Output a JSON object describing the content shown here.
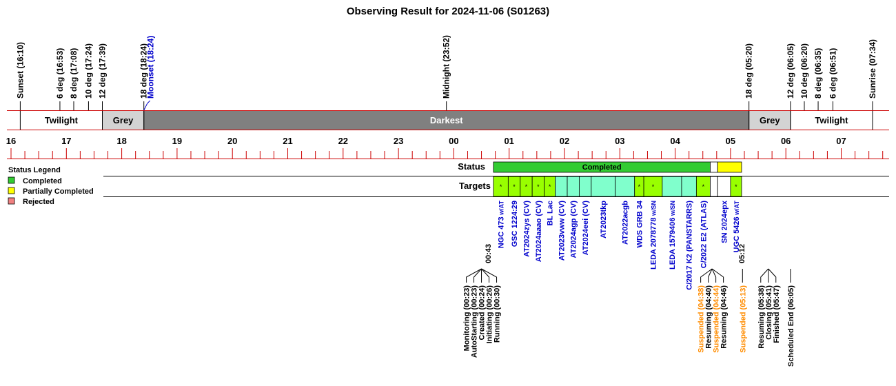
{
  "title": "Observing Result for 2024-11-06 (S01263)",
  "colors": {
    "twilight": "#ffffff",
    "grey": "#d3d3d3",
    "darkest": "#808080",
    "axis_red": "#cc0000",
    "completed": "#33cc33",
    "partial": "#ffff00",
    "rejected": "#f08080",
    "target_lime": "#99ff00",
    "target_aqua": "#80ffcc",
    "target_label": "#0000cc",
    "moon_label": "#0000cc",
    "suspended_label": "#ff8c00"
  },
  "sun_events": [
    {
      "label": "Sunset (16:10)",
      "time": "16:10"
    },
    {
      "label": "6 deg (16:53)",
      "time": "16:53"
    },
    {
      "label": "8 deg (17:08)",
      "time": "17:08"
    },
    {
      "label": "10 deg (17:24)",
      "time": "17:24"
    },
    {
      "label": "12 deg (17:39)",
      "time": "17:39"
    },
    {
      "label": "18 deg (18:24)",
      "time": "18:24"
    },
    {
      "label": "Midnight (23:52)",
      "time": "23:52"
    },
    {
      "label": "18 deg (05:20)",
      "time": "05:20"
    },
    {
      "label": "12 deg (06:05)",
      "time": "06:05"
    },
    {
      "label": "10 deg (06:20)",
      "time": "06:20"
    },
    {
      "label": "8 deg (06:35)",
      "time": "06:35"
    },
    {
      "label": "6 deg (06:51)",
      "time": "06:51"
    },
    {
      "label": "Sunrise (07:34)",
      "time": "07:34"
    }
  ],
  "moon_event": {
    "label": "Moonset (18:24)",
    "time": "18:24"
  },
  "sky_bands": [
    {
      "label": "Twilight",
      "start": "16:10",
      "end": "17:39",
      "kind": "twilight"
    },
    {
      "label": "Grey",
      "start": "17:39",
      "end": "18:24",
      "kind": "grey"
    },
    {
      "label": "Darkest",
      "start": "18:24",
      "end": "05:20",
      "kind": "darkest"
    },
    {
      "label": "Grey",
      "start": "05:20",
      "end": "06:05",
      "kind": "grey"
    },
    {
      "label": "Twilight",
      "start": "06:05",
      "end": "07:34",
      "kind": "twilight"
    }
  ],
  "hour_labels": [
    "16",
    "17",
    "18",
    "19",
    "20",
    "21",
    "22",
    "23",
    "00",
    "01",
    "02",
    "03",
    "04",
    "05",
    "06",
    "07"
  ],
  "legend": {
    "title": "Status Legend",
    "items": [
      {
        "label": "Completed",
        "color": "#33cc33"
      },
      {
        "label": "Partially Completed",
        "color": "#ffff00"
      },
      {
        "label": "Rejected",
        "color": "#f08080"
      }
    ]
  },
  "row_labels": {
    "status": "Status",
    "targets": "Targets"
  },
  "status_bars": [
    {
      "label": "Completed",
      "start": "00:43",
      "end": "04:38",
      "color": "#33cc33"
    },
    {
      "label": "",
      "start": "04:38",
      "end": "04:46",
      "color": "#ffffff"
    },
    {
      "label": "",
      "start": "04:46",
      "end": "05:12",
      "color": "#ffff00"
    }
  ],
  "start_label": "00:43",
  "end_label": "05:12",
  "targets": [
    {
      "name": "NGC 473",
      "suffix": " w/AT",
      "start": "00:43",
      "end": "00:59",
      "fill": "#99ff00",
      "mark": "*"
    },
    {
      "name": "GSC 1224:29",
      "suffix": "",
      "start": "00:59",
      "end": "01:12",
      "fill": "#99ff00",
      "mark": "*"
    },
    {
      "name": "AT2024zys (CV)",
      "suffix": "",
      "start": "01:12",
      "end": "01:25",
      "fill": "#99ff00",
      "mark": "*"
    },
    {
      "name": "AT2024aaao (CV)",
      "suffix": "",
      "start": "01:25",
      "end": "01:38",
      "fill": "#99ff00",
      "mark": "*"
    },
    {
      "name": "BL Lac",
      "suffix": "",
      "start": "01:38",
      "end": "01:50",
      "fill": "#99ff00",
      "mark": "*"
    },
    {
      "name": "AT2023vww (CV)",
      "suffix": "",
      "start": "01:50",
      "end": "02:03",
      "fill": "#80ffcc",
      "mark": ""
    },
    {
      "name": "AT2024agp (CV)",
      "suffix": "",
      "start": "02:03",
      "end": "02:16",
      "fill": "#80ffcc",
      "mark": ""
    },
    {
      "name": "AT2024eei (CV)",
      "suffix": "",
      "start": "02:16",
      "end": "02:29",
      "fill": "#80ffcc",
      "mark": ""
    },
    {
      "name": "AT2023tkp",
      "suffix": "",
      "start": "02:29",
      "end": "02:55",
      "fill": "#80ffcc",
      "mark": ""
    },
    {
      "name": "AT2022acgb",
      "suffix": "",
      "start": "02:55",
      "end": "03:16",
      "fill": "#80ffcc",
      "mark": ""
    },
    {
      "name": "WDS GRB 34",
      "suffix": "",
      "start": "03:16",
      "end": "03:26",
      "fill": "#99ff00",
      "mark": "*"
    },
    {
      "name": "LEDA 2078778",
      "suffix": " w/SN",
      "start": "03:26",
      "end": "03:46",
      "fill": "#99ff00",
      "mark": "*"
    },
    {
      "name": "LEDA 1579406",
      "suffix": " w/SN",
      "start": "03:46",
      "end": "04:07",
      "fill": "#80ffcc",
      "mark": ""
    },
    {
      "name": "C/2017 K2 (PANSTARRS)",
      "suffix": "",
      "start": "04:07",
      "end": "04:23",
      "fill": "#80ffcc",
      "mark": ""
    },
    {
      "name": "C/2022 E2 (ATLAS)",
      "suffix": "",
      "start": "04:23",
      "end": "04:38",
      "fill": "#99ff00",
      "mark": "*"
    },
    {
      "name": "",
      "suffix": "",
      "start": "04:38",
      "end": "04:46",
      "fill": "#ffffff",
      "mark": ""
    },
    {
      "name": "SN 2024epx",
      "suffix": "",
      "start": "04:46",
      "end": "05:00",
      "fill": "#ffffff",
      "mark": ""
    },
    {
      "name": "UGC 5426",
      "suffix": " w/AT",
      "start": "05:00",
      "end": "05:12",
      "fill": "#99ff00",
      "mark": "*"
    }
  ],
  "event_groups": [
    {
      "base": "00:30",
      "events": [
        {
          "label": "Monitoring (00:23)",
          "time": "00:23",
          "color": "#000000"
        },
        {
          "label": "AutoStarting (00:23)",
          "time": "00:23",
          "color": "#000000"
        },
        {
          "label": "Created (00:24)",
          "time": "00:24",
          "color": "#000000"
        },
        {
          "label": "Initiating (00:26)",
          "time": "00:26",
          "color": "#000000"
        },
        {
          "label": "Running (00:30)",
          "time": "00:30",
          "color": "#000000"
        }
      ]
    },
    {
      "base": "04:40",
      "events": [
        {
          "label": "Suspended (04:38)",
          "time": "04:38",
          "color": "#ff8c00"
        },
        {
          "label": "Resuming (04:40)",
          "time": "04:40",
          "color": "#000000"
        },
        {
          "label": "Suspended (04:44)",
          "time": "04:44",
          "color": "#ff8c00"
        },
        {
          "label": "Resuming (04:46)",
          "time": "04:46",
          "color": "#000000"
        }
      ]
    },
    {
      "base": "05:13",
      "events": [
        {
          "label": "Suspended (05:13)",
          "time": "05:13",
          "color": "#ff8c00"
        }
      ]
    },
    {
      "base": "05:41",
      "events": [
        {
          "label": "Resuming (05:38)",
          "time": "05:38",
          "color": "#000000"
        },
        {
          "label": "Closing (05:41)",
          "time": "05:41",
          "color": "#000000"
        },
        {
          "label": "Finished (05:47)",
          "time": "05:47",
          "color": "#000000"
        }
      ]
    },
    {
      "base": "06:05",
      "events": [
        {
          "label": "Scheduled End (06:05)",
          "time": "06:05",
          "color": "#000000"
        }
      ]
    }
  ]
}
